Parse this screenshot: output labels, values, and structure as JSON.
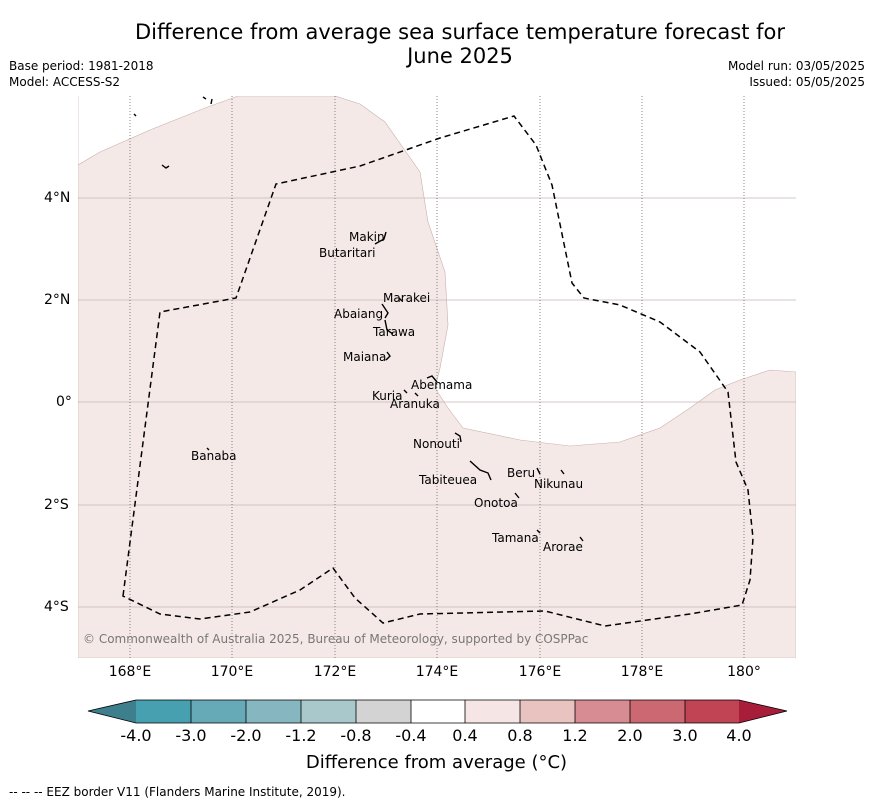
{
  "title_line1": "Difference from average sea surface temperature forecast for",
  "title_line2": "June 2025",
  "meta_left": {
    "base_period": "Base period: 1981-2018",
    "model": "Model: ACCESS-S2"
  },
  "meta_right": {
    "model_run": "Model run: 03/05/2025",
    "issued": "Issued: 05/05/2025"
  },
  "longitude_ticks": [
    "168°E",
    "170°E",
    "172°E",
    "174°E",
    "176°E",
    "178°E",
    "180°"
  ],
  "latitude_ticks": [
    "4°N",
    "2°N",
    "0°",
    "2°S",
    "4°S"
  ],
  "places": {
    "makin": "Makin",
    "butaritari": "Butaritari",
    "marakei": "Marakei",
    "abaiang": "Abaiang",
    "tarawa": "Tarawa",
    "maiana": "Maiana",
    "abemama": "Abemama",
    "kuria": "Kuria",
    "aranuka": "Aranuka",
    "banaba": "Banaba",
    "nonouti": "Nonouti",
    "beru": "Beru",
    "nikunau": "Nikunau",
    "tabiteuea": "Tabiteuea",
    "onotoa": "Onotoa",
    "tamana": "Tamana",
    "arorae": "Arorae"
  },
  "copyright": "© Commonwealth of Australia 2025, Bureau of Meteorology, supported by COSPPac",
  "colorbar": {
    "labels": [
      "-4.0",
      "-3.0",
      "-2.0",
      "-1.2",
      "-0.8",
      "-0.4",
      "0.4",
      "0.8",
      "1.2",
      "2.0",
      "3.0",
      "4.0"
    ],
    "colors": [
      "#3d7f8c",
      "#47a0b0",
      "#66aab8",
      "#86b6c0",
      "#a8c8cc",
      "#d3d3d3",
      "#ffffff",
      "#f5e6e5",
      "#e8c3c0",
      "#d78b92",
      "#cb6871",
      "#c04453",
      "#a81e3a"
    ],
    "title": "Difference from average (°C)"
  },
  "eez_note": "--  --  -- EEZ border V11 (Flanders Marine Institute, 2019).",
  "map_fill_color": "#f5e9e8"
}
